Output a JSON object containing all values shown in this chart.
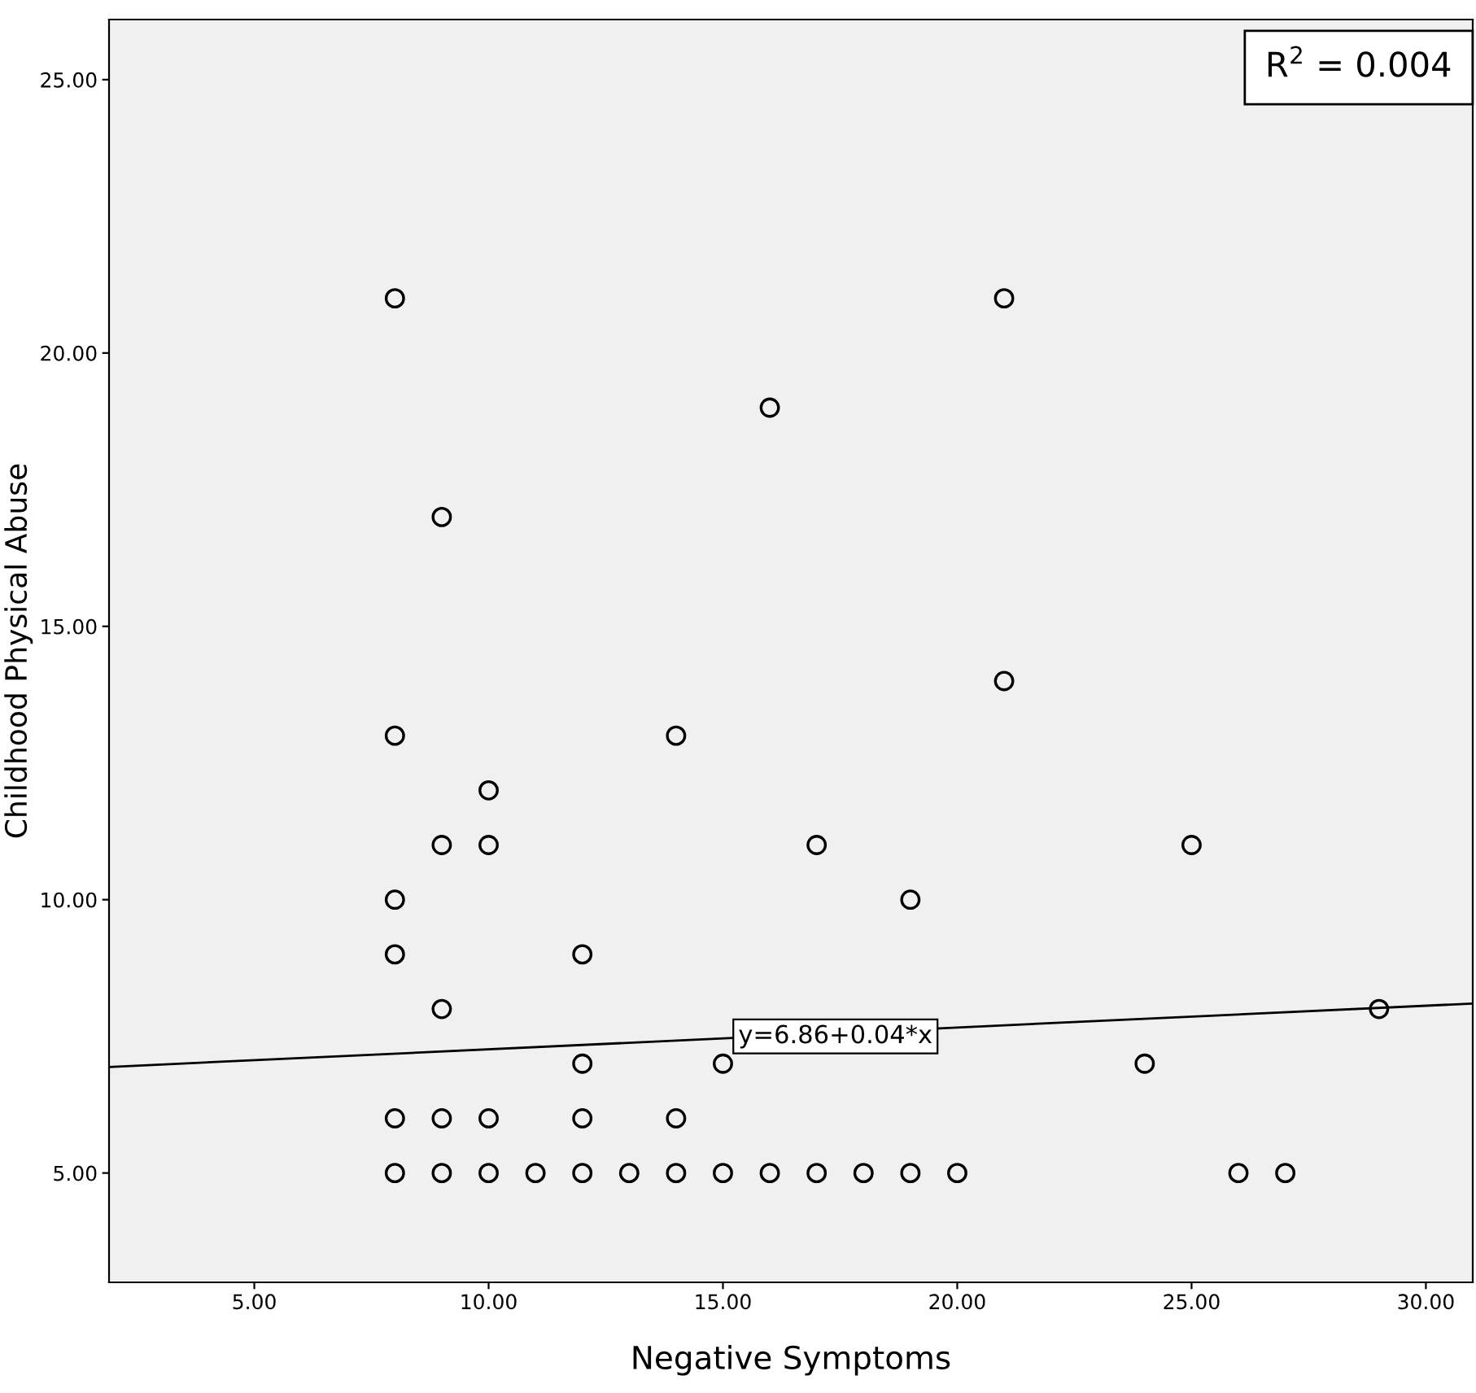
{
  "chart_data": {
    "type": "scatter",
    "xlabel": "Negative Symptoms",
    "ylabel": "Childhood Physical Abuse",
    "xlim": [
      1.9,
      31
    ],
    "ylim": [
      3.0,
      26.1
    ],
    "xticks": [
      {
        "value": 5,
        "label": "5.00"
      },
      {
        "value": 10,
        "label": "10.00"
      },
      {
        "value": 15,
        "label": "15.00"
      },
      {
        "value": 20,
        "label": "20.00"
      },
      {
        "value": 25,
        "label": "25.00"
      },
      {
        "value": 30,
        "label": "30.00"
      }
    ],
    "yticks": [
      {
        "value": 5,
        "label": "5.00"
      },
      {
        "value": 10,
        "label": "10.00"
      },
      {
        "value": 15,
        "label": "15.00"
      },
      {
        "value": 20,
        "label": "20.00"
      },
      {
        "value": 25,
        "label": "25.00"
      }
    ],
    "grid": false,
    "legend": false,
    "marker": "circle",
    "series": [
      {
        "color": "#000000",
        "x": [
          8,
          8,
          8,
          8,
          8,
          8,
          9,
          9,
          9,
          9,
          9,
          10,
          10,
          10,
          10,
          11,
          12,
          12,
          12,
          12,
          13,
          14,
          14,
          14,
          15,
          15,
          16,
          16,
          17,
          17,
          18,
          19,
          19,
          20,
          21,
          21,
          24,
          25,
          26,
          27,
          29
        ],
        "values": [
          21,
          13,
          10,
          9,
          6,
          5,
          17,
          11,
          8,
          6,
          5,
          12,
          11,
          6,
          5,
          5,
          9,
          7,
          6,
          5,
          5,
          13,
          6,
          5,
          7,
          5,
          19,
          5,
          11,
          5,
          5,
          10,
          5,
          5,
          21,
          14,
          7,
          11,
          5,
          5,
          8
        ]
      },
      {
        "type": "line",
        "color": "#000000",
        "x": [
          1.9,
          31
        ],
        "values": [
          6.94,
          8.1
        ],
        "marker": "none",
        "line_style": "solid"
      }
    ],
    "annotations": [
      {
        "text": "y=6.86+0.04*x",
        "x": 17.4,
        "y": 7.5
      },
      "R$^{2}$ = 0.004"
    ]
  }
}
